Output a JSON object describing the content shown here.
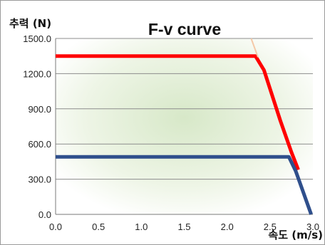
{
  "chart_data": {
    "type": "line",
    "title": "F-v curve",
    "xlabel": "속도 (m/s)",
    "ylabel": "추력 (N)",
    "xlim": [
      0.0,
      3.0
    ],
    "ylim": [
      0.0,
      1500.0
    ],
    "x_ticks": [
      "0.0",
      "0.5",
      "1.0",
      "1.5",
      "2.0",
      "2.5",
      "3.0"
    ],
    "y_ticks": [
      "0.0",
      "300.0",
      "600.0",
      "900.0",
      "1200.0",
      "1500.0"
    ],
    "grid": true,
    "legend": false,
    "plot_background": "soft green gradient",
    "series": [
      {
        "color": "#ff0000",
        "x": [
          0.0,
          2.33,
          2.43,
          2.62,
          2.75,
          2.83
        ],
        "y": [
          1350,
          1350,
          1230,
          800,
          530,
          380
        ]
      },
      {
        "color": "#2f4f8c",
        "x": [
          0.0,
          2.72,
          2.8,
          2.98
        ],
        "y": [
          490,
          490,
          370,
          0
        ]
      },
      {
        "color": "#f5c9a8",
        "x": [
          2.28,
          2.36
        ],
        "y": [
          1500,
          1340
        ]
      }
    ]
  }
}
